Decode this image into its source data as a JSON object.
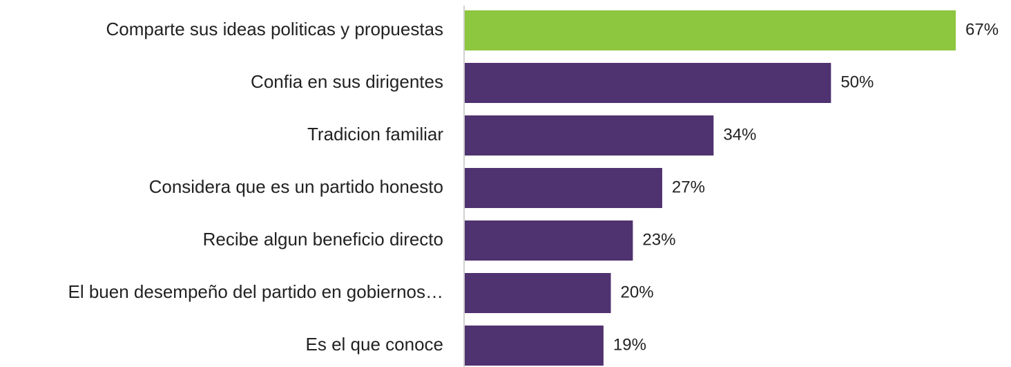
{
  "chart_data": {
    "type": "hbar",
    "categories": [
      "Comparte sus ideas politicas y propuestas",
      "Confia en sus dirigentes",
      "Tradicion familiar",
      "Considera que es un partido honesto",
      "Recibe algun beneficio directo",
      "El buen desempeño del partido en gobiernos…",
      "Es el que conoce"
    ],
    "values": [
      67,
      50,
      34,
      27,
      23,
      20,
      19
    ],
    "value_labels": [
      "67%",
      "50%",
      "34%",
      "27%",
      "23%",
      "20%",
      "19%"
    ],
    "colors": [
      "#8dc63f",
      "#4f3270",
      "#4f3270",
      "#4f3270",
      "#4f3270",
      "#4f3270",
      "#4f3270"
    ]
  }
}
